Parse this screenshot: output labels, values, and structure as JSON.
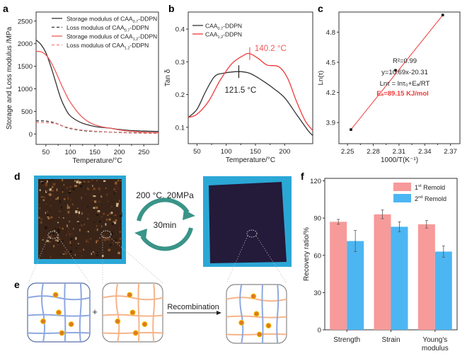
{
  "panel_labels": {
    "a": "a",
    "b": "b",
    "c": "c",
    "d": "d",
    "e": "e",
    "f": "f"
  },
  "colors": {
    "black_series": "#333333",
    "red_series": "#ee3a3a",
    "pink_bar": "#f79a9a",
    "blue_bar": "#4cb6f2",
    "photo_bg": "#2ba7d6",
    "arrow": "#3a9488",
    "network_blue": "#8ea8e0",
    "network_orange": "#f6b48a"
  },
  "chart_data": [
    {
      "id": "a",
      "type": "line",
      "xlabel": "Temperature/°C",
      "ylabel": "Storage and Loss modulus /MPa",
      "xlim": [
        30,
        280
      ],
      "ylim": [
        -230,
        2700
      ],
      "xticks": [
        50,
        100,
        150,
        200,
        250
      ],
      "yticks": [
        0,
        500,
        1000,
        1500,
        2000,
        2500
      ],
      "legend": "top-right",
      "series": [
        {
          "name": "Storage modulus of CAA0.7-DDPN",
          "label_parts": [
            "Storage modulus of CAA",
            "0.7",
            "-DDPN"
          ],
          "color": "#333333",
          "dash": false,
          "x": [
            30,
            40,
            50,
            60,
            70,
            80,
            90,
            100,
            120,
            140,
            160,
            180,
            200,
            220,
            250,
            280
          ],
          "y": [
            2080,
            1980,
            1800,
            1500,
            1150,
            800,
            560,
            400,
            260,
            190,
            150,
            130,
            100,
            80,
            65,
            55
          ]
        },
        {
          "name": "Loss modulus of CAA0.7-DDPN",
          "label_parts": [
            "Loss modulus of CAA",
            "0.7",
            "-DDPN"
          ],
          "color": "#333333",
          "dash": true,
          "x": [
            30,
            50,
            70,
            90,
            110,
            130,
            160,
            200,
            240,
            280
          ],
          "y": [
            290,
            285,
            240,
            150,
            100,
            70,
            50,
            35,
            25,
            20
          ]
        },
        {
          "name": "Storage modulus of CAA1.2-DDPN",
          "label_parts": [
            "Storage modulus of CAA",
            "1.2",
            "-DDPN"
          ],
          "color": "#ee5a5a",
          "dash": false,
          "x": [
            30,
            40,
            50,
            60,
            70,
            80,
            90,
            100,
            120,
            140,
            160,
            180,
            200,
            220,
            250,
            280
          ],
          "y": [
            1830,
            1820,
            1750,
            1600,
            1380,
            1130,
            900,
            700,
            420,
            250,
            170,
            130,
            90,
            65,
            40,
            30
          ]
        },
        {
          "name": "Loss modulus of CAA1.2-DDPN",
          "label_parts": [
            "Loss modulus of CAA",
            "1.2",
            "-DDPN"
          ],
          "color": "#f08080",
          "dash": true,
          "x": [
            30,
            50,
            70,
            90,
            110,
            130,
            160,
            200,
            240,
            280
          ],
          "y": [
            250,
            250,
            230,
            160,
            110,
            80,
            55,
            30,
            18,
            10
          ]
        }
      ]
    },
    {
      "id": "b",
      "type": "line",
      "xlabel": "Temperature/°C",
      "ylabel": "Tan δ",
      "xlim": [
        35,
        248
      ],
      "ylim": [
        0.05,
        0.452
      ],
      "xticks": [
        50,
        100,
        150,
        200
      ],
      "yticks": [
        0.1,
        0.2,
        0.3,
        0.4
      ],
      "legend": "top-left",
      "series": [
        {
          "name": "CAA0.7-DDPN",
          "label_parts": [
            "CAA",
            "0.7",
            "-DDPN"
          ],
          "color": "#333333",
          "x": [
            35,
            50,
            65,
            80,
            95,
            121.5,
            140,
            160,
            180,
            200,
            220,
            240,
            248
          ],
          "y": [
            0.13,
            0.155,
            0.21,
            0.255,
            0.265,
            0.27,
            0.265,
            0.245,
            0.22,
            0.19,
            0.14,
            0.09,
            0.075
          ]
        },
        {
          "name": "CAA1.2-DDPN",
          "label_parts": [
            "CAA",
            "1.2",
            "-DDPN"
          ],
          "color": "#ee3a3a",
          "x": [
            35,
            50,
            70,
            90,
            110,
            130,
            140.2,
            155,
            170,
            190,
            205,
            220,
            235,
            248
          ],
          "y": [
            0.13,
            0.14,
            0.18,
            0.245,
            0.295,
            0.32,
            0.325,
            0.31,
            0.29,
            0.285,
            0.25,
            0.18,
            0.12,
            0.09
          ]
        }
      ],
      "annotations": [
        {
          "text": "121.5 °C",
          "x": 121.5,
          "y": 0.27,
          "color": "#222222"
        },
        {
          "text": "140.2 °C",
          "x": 140.2,
          "y": 0.325,
          "color": "#ee5a5a"
        }
      ]
    },
    {
      "id": "c",
      "type": "scatter",
      "xlabel": "1000/T(K⁻¹)",
      "ylabel": "Ln(τ)",
      "xlim": [
        2.24,
        2.381
      ],
      "ylim": [
        3.69,
        5.0
      ],
      "xticks": [
        2.25,
        2.28,
        2.31,
        2.34,
        2.37
      ],
      "xtick_labels": [
        "2.25",
        "2.28",
        "2.31",
        "2.34",
        "2.37"
      ],
      "yticks": [
        3.9,
        4.2,
        4.5,
        4.8
      ],
      "points": {
        "x": [
          2.254,
          2.306,
          2.361
        ],
        "y": [
          3.83,
          4.42,
          4.97
        ]
      },
      "fit_color": "#ee3a3a",
      "annotations": [
        "R²=0.99",
        "y=10.69x-20.31",
        "Lnτ = lnτ₀+Eₐ/RT"
      ],
      "highlight": "Eₐ=89.15 KJ/mol"
    },
    {
      "id": "f",
      "type": "bar",
      "ylabel": "Recovery ratio/%",
      "ylim": [
        0,
        122
      ],
      "yticks": [
        0,
        30,
        60,
        90,
        120
      ],
      "categories": [
        "Strength",
        "Strain",
        "Young's modulus"
      ],
      "category_lines": [
        [
          "Strength"
        ],
        [
          "Strain"
        ],
        [
          "Young's",
          "modulus"
        ]
      ],
      "legend": "top-right",
      "series": [
        {
          "name": "1st Remold",
          "label_parts": [
            "1",
            "st",
            " Remold"
          ],
          "color": "#f79a9a",
          "values": [
            87,
            93,
            85
          ],
          "errors": [
            2,
            3.5,
            3
          ]
        },
        {
          "name": "2nd Remold",
          "label_parts": [
            "2",
            "nd",
            " Remold"
          ],
          "color": "#4cb6f2",
          "values": [
            71.5,
            83,
            63
          ],
          "errors": [
            8.5,
            4,
            4.5
          ]
        }
      ]
    }
  ],
  "panel_d": {
    "condition": "200 °C, 20MPa",
    "time": "30min"
  },
  "panel_e": {
    "plus": "+",
    "arrow_label": "Recombination"
  }
}
